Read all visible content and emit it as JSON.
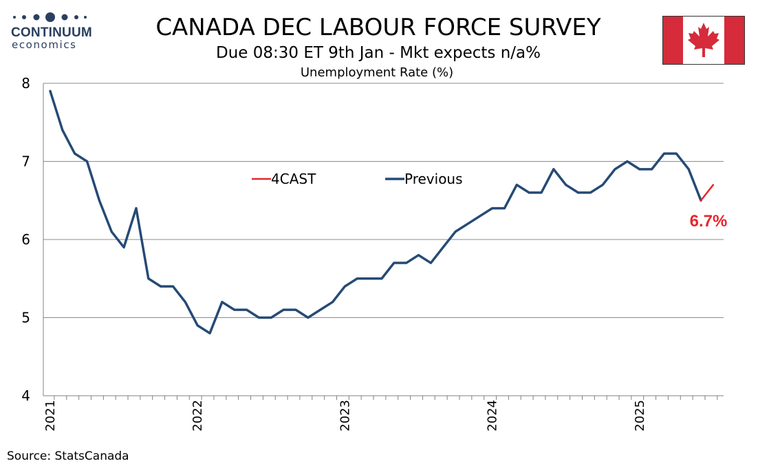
{
  "header": {
    "brand_name": "CONTINUUM",
    "brand_sub": "economics",
    "title": "CANADA DEC LABOUR FORCE SURVEY",
    "subtitle": "Due 08:30 ET 9th Jan - Mkt expects n/a%"
  },
  "footer": {
    "source": "Source: StatsCanada"
  },
  "colors": {
    "previous": "#264a75",
    "forecast": "#e8262b",
    "brand": "#2a3f5f",
    "flag_red": "#d52b3a"
  },
  "chart_data": {
    "type": "line",
    "title": "Unemployment Rate (%)",
    "xlabel": "",
    "ylabel": "",
    "ylim": [
      4,
      8
    ],
    "yticks": [
      "4",
      "5",
      "6",
      "7",
      "8"
    ],
    "xtick_labels": [
      "2021",
      "2022",
      "2023",
      "2024",
      "2025"
    ],
    "grid": true,
    "legend": [
      "4CAST",
      "Previous"
    ],
    "series": [
      {
        "name": "Previous",
        "start": "2021-01",
        "values": [
          7.9,
          7.4,
          7.1,
          7.0,
          6.5,
          6.1,
          5.9,
          6.4,
          5.5,
          5.4,
          5.4,
          5.2,
          4.9,
          4.8,
          5.2,
          5.1,
          5.1,
          5.0,
          5.0,
          5.1,
          5.1,
          5.0,
          5.1,
          5.2,
          5.4,
          5.5,
          5.5,
          5.5,
          5.7,
          5.7,
          5.8,
          5.7,
          5.9,
          6.1,
          6.2,
          6.3,
          6.4,
          6.4,
          6.7,
          6.6,
          6.6,
          6.9,
          6.7,
          6.6,
          6.6,
          6.7,
          6.9,
          7.0,
          6.9,
          6.9,
          7.1,
          7.1,
          6.9,
          6.5
        ]
      },
      {
        "name": "4CAST",
        "x": [
          "2025-06",
          "2025-07"
        ],
        "values": [
          6.5,
          6.7
        ]
      }
    ],
    "annotation": "6.7%"
  }
}
